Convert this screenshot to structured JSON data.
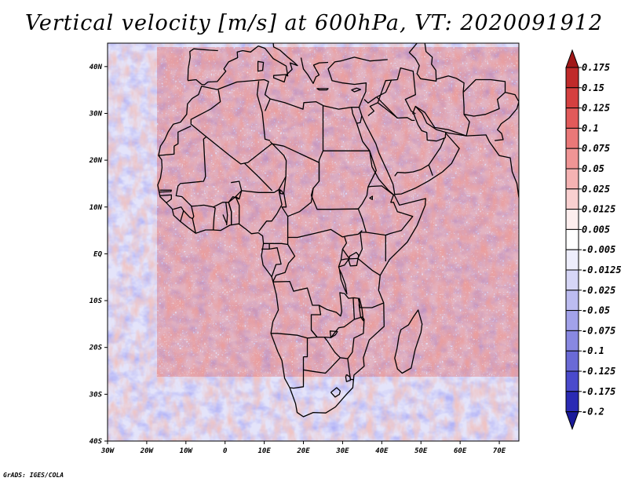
{
  "title": "Vertical velocity [m/s] at 600hPa, VT: 2020091912",
  "footer": "GrADS: IGES/COLA",
  "map": {
    "lon_range": [
      -30,
      75
    ],
    "lat_range": [
      -40,
      45
    ],
    "lat_ticks": [
      {
        "value": 40,
        "label": "40N"
      },
      {
        "value": 30,
        "label": "30N"
      },
      {
        "value": 20,
        "label": "20N"
      },
      {
        "value": 10,
        "label": "10N"
      },
      {
        "value": 0,
        "label": "EQ"
      },
      {
        "value": -10,
        "label": "10S"
      },
      {
        "value": -20,
        "label": "20S"
      },
      {
        "value": -30,
        "label": "30S"
      },
      {
        "value": -40,
        "label": "40S"
      }
    ],
    "lon_ticks": [
      {
        "value": -30,
        "label": "30W"
      },
      {
        "value": -20,
        "label": "20W"
      },
      {
        "value": -10,
        "label": "10W"
      },
      {
        "value": 0,
        "label": "0"
      },
      {
        "value": 10,
        "label": "10E"
      },
      {
        "value": 20,
        "label": "20E"
      },
      {
        "value": 30,
        "label": "30E"
      },
      {
        "value": 40,
        "label": "40E"
      },
      {
        "value": 50,
        "label": "50E"
      },
      {
        "value": 60,
        "label": "60E"
      },
      {
        "value": 70,
        "label": "70E"
      }
    ]
  },
  "colorbar": {
    "levels": [
      "0.175",
      "0.15",
      "0.125",
      "0.1",
      "0.075",
      "0.05",
      "0.025",
      "0.0125",
      "0.005",
      "-0.005",
      "-0.0125",
      "-0.025",
      "-0.05",
      "-0.075",
      "-0.1",
      "-0.125",
      "-0.175",
      "-0.2"
    ],
    "colors": [
      "#a01818",
      "#c02a2a",
      "#d54040",
      "#e25a5a",
      "#ea7878",
      "#f09595",
      "#f5b3b3",
      "#f9d0d0",
      "#fdeeee",
      "#ffffff",
      "#eeeefc",
      "#d6d6f6",
      "#bcbcf0",
      "#a2a2ea",
      "#8888e2",
      "#6a6ad6",
      "#4a4acc",
      "#2a2ab4",
      "#1a1a9a"
    ]
  }
}
